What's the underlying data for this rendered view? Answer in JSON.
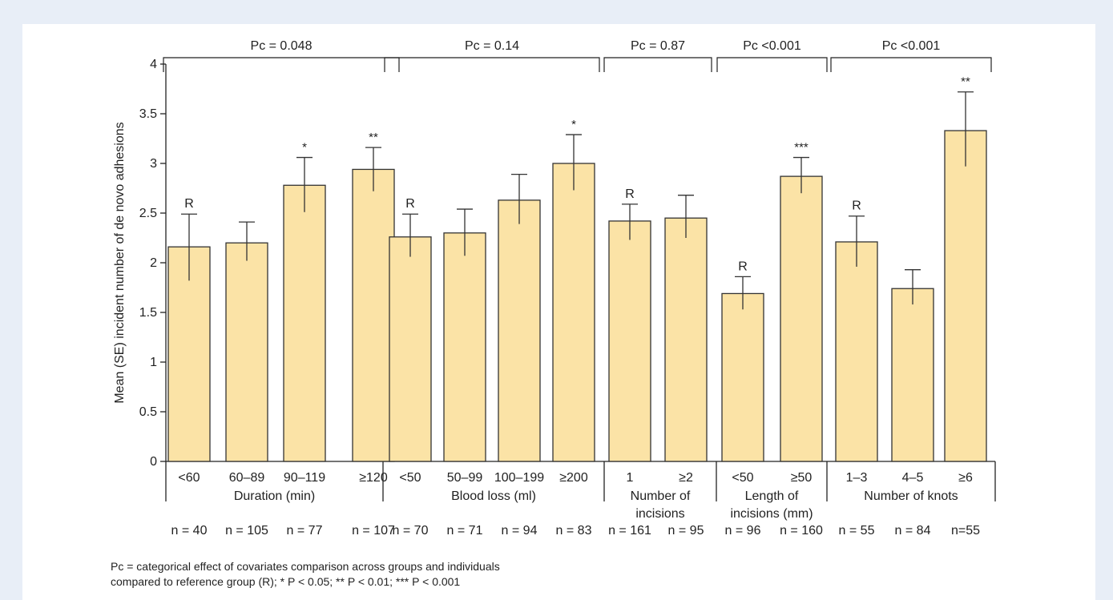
{
  "chart_data": {
    "type": "bar",
    "ylabel": "Mean (SE) incident number of de novo adhesions",
    "ylim": [
      0,
      4
    ],
    "yticks": [
      "0",
      "0.5",
      "1",
      "1.5",
      "2",
      "2.5",
      "3",
      "3.5",
      "4"
    ],
    "bar_color": "#fbe3a6",
    "bar_edge": "#333333",
    "groups": [
      {
        "name": "Duration (min)",
        "pc": "Pc = 0.048",
        "bars": [
          {
            "category": "<60",
            "value": 2.16,
            "se_low": 1.82,
            "se_high": 2.49,
            "marker": "R",
            "n": "n = 40"
          },
          {
            "category": "60–89",
            "value": 2.2,
            "se_low": 2.02,
            "se_high": 2.41,
            "marker": "",
            "n": "n = 105"
          },
          {
            "category": "90–119",
            "value": 2.78,
            "se_low": 2.51,
            "se_high": 3.06,
            "marker": "*",
            "n": "n = 77"
          },
          {
            "category": "≥120",
            "value": 2.94,
            "se_low": 2.72,
            "se_high": 3.16,
            "marker": "**",
            "n": "n = 107"
          }
        ]
      },
      {
        "name": "Blood loss (ml)",
        "pc": "Pc = 0.14",
        "bars": [
          {
            "category": "<50",
            "value": 2.26,
            "se_low": 2.06,
            "se_high": 2.49,
            "marker": "R",
            "n": "n = 70"
          },
          {
            "category": "50–99",
            "value": 2.3,
            "se_low": 2.07,
            "se_high": 2.54,
            "marker": "",
            "n": "n = 71"
          },
          {
            "category": "100–199",
            "value": 2.63,
            "se_low": 2.39,
            "se_high": 2.89,
            "marker": "",
            "n": "n = 94"
          },
          {
            "category": "≥200",
            "value": 3.0,
            "se_low": 2.73,
            "se_high": 3.29,
            "marker": "*",
            "n": "n = 83"
          }
        ]
      },
      {
        "name": "Number of incisions",
        "pc": "Pc = 0.87",
        "bars": [
          {
            "category": "1",
            "value": 2.42,
            "se_low": 2.23,
            "se_high": 2.59,
            "marker": "R",
            "n": "n = 161"
          },
          {
            "category": "≥2",
            "value": 2.45,
            "se_low": 2.25,
            "se_high": 2.68,
            "marker": "",
            "n": "n = 95"
          }
        ]
      },
      {
        "name": "Length of incisions (mm)",
        "pc": "Pc <0.001",
        "bars": [
          {
            "category": "<50",
            "value": 1.69,
            "se_low": 1.53,
            "se_high": 1.86,
            "marker": "R",
            "n": "n = 96"
          },
          {
            "category": "≥50",
            "value": 2.87,
            "se_low": 2.7,
            "se_high": 3.06,
            "marker": "***",
            "n": "n = 160"
          }
        ]
      },
      {
        "name": "Number of knots",
        "pc": "Pc  <0.001",
        "bars": [
          {
            "category": "1–3",
            "value": 2.21,
            "se_low": 1.96,
            "se_high": 2.47,
            "marker": "R",
            "n": "n = 55"
          },
          {
            "category": "4–5",
            "value": 1.74,
            "se_low": 1.58,
            "se_high": 1.93,
            "marker": "",
            "n": "n = 84"
          },
          {
            "category": "≥6",
            "value": 3.33,
            "se_low": 2.97,
            "se_high": 3.72,
            "marker": "**",
            "n": "n=55"
          }
        ]
      }
    ]
  },
  "footnote": {
    "line1": "Pc = categorical effect of covariates comparison across groups and individuals",
    "line2": "compared to reference group (R); * P < 0.05; ** P < 0.01; *** P < 0.001"
  }
}
